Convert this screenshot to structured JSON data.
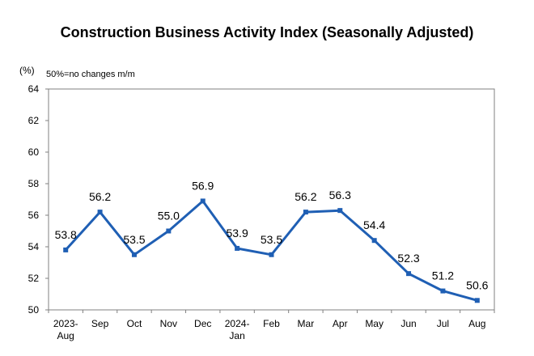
{
  "chart_data": {
    "type": "line",
    "title": "Construction Business Activity Index (Seasonally Adjusted)",
    "unit_label": "(%)",
    "note": "50%=no changes m/m",
    "categories": [
      [
        "2023-",
        "Aug"
      ],
      [
        "Sep"
      ],
      [
        "Oct"
      ],
      [
        "Nov"
      ],
      [
        "Dec"
      ],
      [
        "2024-",
        "Jan"
      ],
      [
        "Feb"
      ],
      [
        "Mar"
      ],
      [
        "Apr"
      ],
      [
        "May"
      ],
      [
        "Jun"
      ],
      [
        "Jul"
      ],
      [
        "Aug"
      ]
    ],
    "series": [
      {
        "values": [
          53.8,
          56.2,
          53.5,
          55.0,
          56.9,
          53.9,
          53.5,
          56.2,
          56.3,
          54.4,
          52.3,
          51.2,
          50.6
        ],
        "labels": [
          "53.8",
          "56.2",
          "53.5",
          "55.0",
          "56.9",
          "53.9",
          "53.5",
          "56.2",
          "56.3",
          "54.4",
          "52.3",
          "51.2",
          "50.6"
        ],
        "color": "#1f5fb4"
      }
    ],
    "ylim": [
      50,
      64
    ],
    "yticks": [
      50,
      52,
      54,
      56,
      58,
      60,
      62,
      64
    ],
    "grid": false,
    "legend": "none"
  }
}
